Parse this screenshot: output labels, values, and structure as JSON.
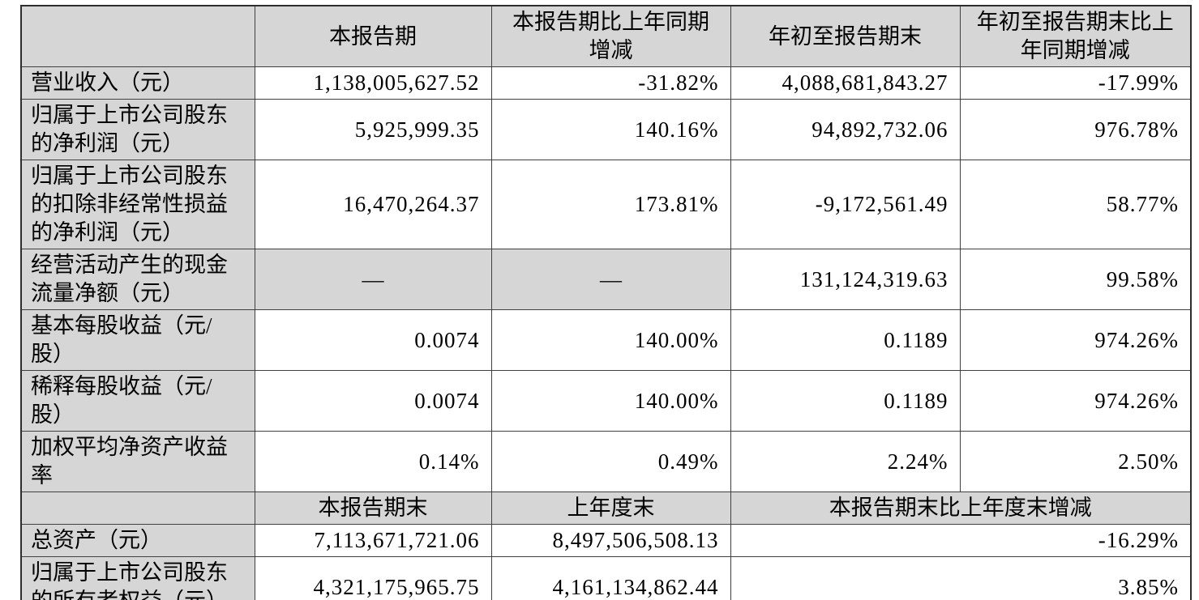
{
  "table": {
    "header_row_1": {
      "corner": "",
      "current_period": "本报告期",
      "current_period_yoy": "本报告期比上年同期\n增减",
      "year_to_date": "年初至报告期末",
      "year_to_date_yoy": "年初至报告期末比上\n年同期增减"
    },
    "rows": [
      {
        "label": "营业收入（元）",
        "current_period": "1,138,005,627.52",
        "yoy_change": "-31.82%",
        "year_to_date": "4,088,681,843.27",
        "ytd_yoy_change": "-17.99%"
      },
      {
        "label": "归属于上市公司股东\n的净利润（元）",
        "current_period": "5,925,999.35",
        "yoy_change": "140.16%",
        "year_to_date": "94,892,732.06",
        "ytd_yoy_change": "976.78%"
      },
      {
        "label": "归属于上市公司股东\n的扣除非经常性损益\n的净利润（元）",
        "current_period": "16,470,264.37",
        "yoy_change": "173.81%",
        "year_to_date": "-9,172,561.49",
        "ytd_yoy_change": "58.77%"
      },
      {
        "label": "经营活动产生的现金\n流量净额（元）",
        "current_period": "—",
        "yoy_change": "—",
        "year_to_date": "131,124,319.63",
        "ytd_yoy_change": "99.58%"
      },
      {
        "label": "基本每股收益（元/\n股）",
        "current_period": "0.0074",
        "yoy_change": "140.00%",
        "year_to_date": "0.1189",
        "ytd_yoy_change": "974.26%"
      },
      {
        "label": "稀释每股收益（元/\n股）",
        "current_period": "0.0074",
        "yoy_change": "140.00%",
        "year_to_date": "0.1189",
        "ytd_yoy_change": "974.26%"
      },
      {
        "label": "加权平均净资产收益\n率",
        "current_period": "0.14%",
        "yoy_change": "0.49%",
        "year_to_date": "2.24%",
        "ytd_yoy_change": "2.50%"
      }
    ],
    "header_row_2": {
      "corner": "",
      "end_of_period": "本报告期末",
      "end_of_prior_year": "上年度末",
      "period_vs_prior_year": "本报告期末比上年度末增减"
    },
    "rows_balance": [
      {
        "label": "总资产（元）",
        "end_of_period": "7,113,671,721.06",
        "end_of_prior_year": "8,497,506,508.13",
        "change": "-16.29%"
      },
      {
        "label": "归属于上市公司股东\n的所有者权益（元）",
        "end_of_period": "4,321,175,965.75",
        "end_of_prior_year": "4,161,134,862.44",
        "change": "3.85%"
      }
    ]
  }
}
